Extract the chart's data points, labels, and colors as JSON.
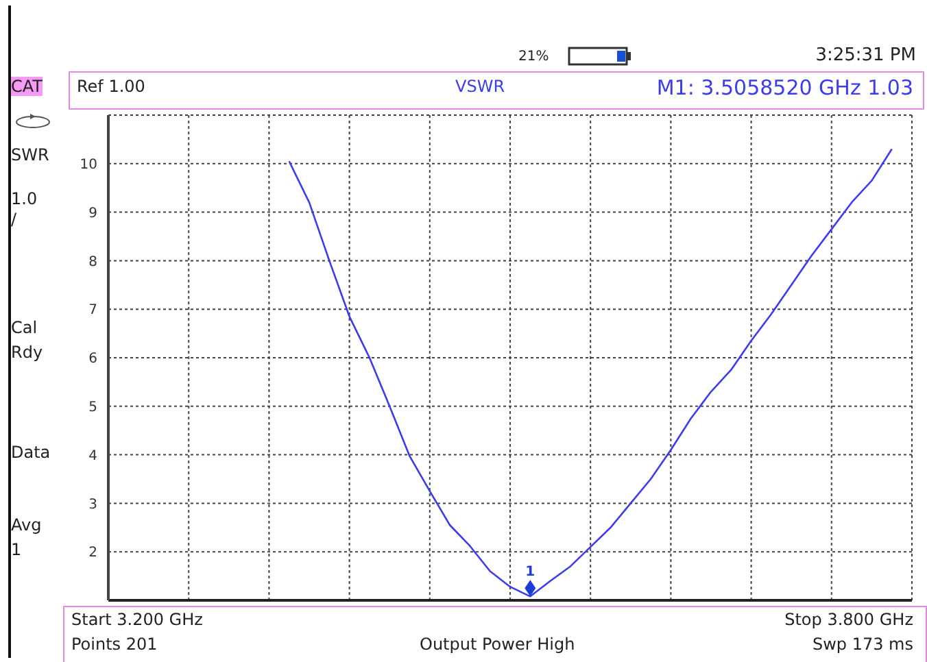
{
  "chart_data": {
    "type": "line",
    "title": "VSWR",
    "categories": [
      null,
      null,
      null,
      null,
      null,
      null,
      null,
      null,
      null,
      null,
      null,
      null,
      null,
      null,
      null,
      null,
      null,
      null,
      null,
      null,
      null,
      null,
      null,
      null,
      null,
      null,
      null,
      null,
      null,
      null,
      null,
      null,
      null,
      null,
      null,
      null,
      null,
      null,
      null,
      null,
      null
    ],
    "series": [
      {
        "color": "#3b3bf0",
        "values": [
          null,
          null,
          null,
          null,
          null,
          null,
          null,
          null,
          null,
          10.05,
          9.2,
          8.0,
          6.85,
          6.0,
          5.0,
          3.97,
          3.25,
          2.55,
          2.12,
          1.6,
          1.28,
          1.08,
          1.4,
          1.7,
          2.1,
          2.5,
          3.0,
          3.5,
          4.1,
          4.75,
          5.3,
          5.75,
          6.35,
          6.9,
          7.5,
          8.1,
          8.65,
          9.2,
          9.65,
          10.3,
          null
        ]
      }
    ],
    "ylim": [
      1,
      11
    ],
    "yticks": [
      2,
      3,
      4,
      5,
      6,
      7,
      8,
      9,
      10
    ],
    "grid": true,
    "marker": "none",
    "line_style": "solid",
    "annotations": [
      "Ref 1.00",
      "M1:  3.5058520 GHz    1.03",
      "21%",
      "3:25:31 PM",
      "CAT",
      "SWR",
      "1.0",
      "/",
      "Cal",
      "Rdy",
      "Data",
      "Avg",
      "1",
      "Start 3.200 GHz",
      "Stop 3.800 GHz",
      "Points 201",
      "Output Power High",
      "Swp 173 ms",
      "1"
    ]
  }
}
